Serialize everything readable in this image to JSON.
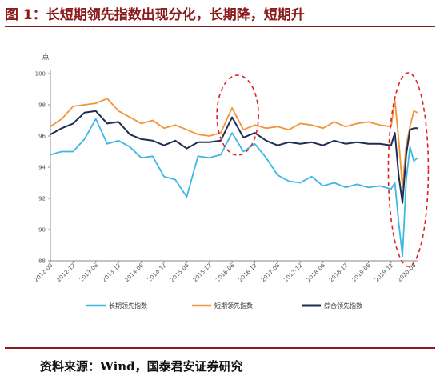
{
  "figure": {
    "title": "图 1：长短期领先指数出现分化，长期降，短期升",
    "source": "资料来源：Wind，国泰君安证券研究"
  },
  "colors": {
    "long": "#3fb7e4",
    "short": "#f0953a",
    "composite": "#1f2d55",
    "highlight": "#e02020",
    "accent": "#8b1a1a"
  },
  "chart_data": {
    "type": "line",
    "unit_label": "点",
    "ylim": [
      88,
      100
    ],
    "yticks": [
      88,
      90,
      92,
      94,
      96,
      98,
      100
    ],
    "xlabels": [
      "2012-06",
      "2012-12",
      "2013-06",
      "2013-12",
      "2014-06",
      "2014-12",
      "2015-06",
      "2015-12",
      "2016-06",
      "2016-12",
      "2017-06",
      "2017-12",
      "2018-06",
      "2018-12",
      "2019-06",
      "2019-12",
      "2020-06"
    ],
    "x": [
      "2012-06",
      "2012-09",
      "2012-12",
      "2013-03",
      "2013-06",
      "2013-09",
      "2013-12",
      "2014-03",
      "2014-06",
      "2014-09",
      "2014-12",
      "2015-03",
      "2015-06",
      "2015-09",
      "2015-12",
      "2016-03",
      "2016-06",
      "2016-09",
      "2016-12",
      "2017-03",
      "2017-06",
      "2017-09",
      "2017-12",
      "2018-03",
      "2018-06",
      "2018-09",
      "2018-12",
      "2019-03",
      "2019-06",
      "2019-09",
      "2019-12",
      "2020-01",
      "2020-02",
      "2020-03",
      "2020-04",
      "2020-05",
      "2020-06",
      "2020-07"
    ],
    "series": [
      {
        "name": "长期领先指数",
        "key": "long",
        "values": [
          94.8,
          95.0,
          95.0,
          95.8,
          97.1,
          95.5,
          95.7,
          95.3,
          94.6,
          94.7,
          93.4,
          93.2,
          92.1,
          94.7,
          94.6,
          94.8,
          96.2,
          95.0,
          95.5,
          94.6,
          93.5,
          93.1,
          93.0,
          93.4,
          92.8,
          93.0,
          92.7,
          92.9,
          92.7,
          92.8,
          92.6,
          93.0,
          90.5,
          88.3,
          93.2,
          95.3,
          94.4,
          94.6
        ]
      },
      {
        "name": "短期领先指数",
        "key": "short",
        "values": [
          96.6,
          97.1,
          97.9,
          98.0,
          98.1,
          98.4,
          97.6,
          97.2,
          96.8,
          97.0,
          96.5,
          96.7,
          96.4,
          96.1,
          96.0,
          96.2,
          97.8,
          96.4,
          96.7,
          96.5,
          96.6,
          96.4,
          96.8,
          96.7,
          96.5,
          96.9,
          96.6,
          96.8,
          96.9,
          96.7,
          96.6,
          98.3,
          95.8,
          92.7,
          95.4,
          96.6,
          97.6,
          97.5
        ]
      },
      {
        "name": "综合领先指数",
        "key": "composite",
        "values": [
          96.1,
          96.5,
          96.8,
          97.5,
          97.6,
          96.8,
          96.9,
          96.1,
          95.8,
          95.7,
          95.4,
          95.7,
          95.2,
          95.6,
          95.6,
          95.7,
          97.2,
          95.9,
          96.2,
          95.7,
          95.4,
          95.6,
          95.5,
          95.6,
          95.4,
          95.7,
          95.5,
          95.6,
          95.5,
          95.5,
          95.4,
          96.2,
          93.5,
          91.7,
          94.8,
          96.4,
          96.5,
          96.5
        ]
      }
    ],
    "legend_position": "bottom",
    "grid": false
  }
}
